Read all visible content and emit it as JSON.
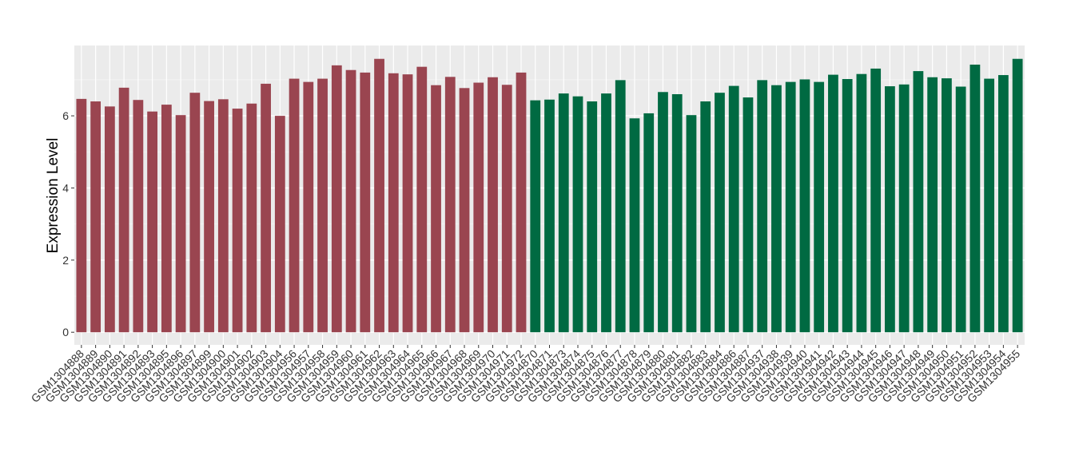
{
  "chart_data": {
    "type": "bar",
    "ylabel": "Expression Level",
    "xlabel": "",
    "ylim": [
      -0.35,
      7.95
    ],
    "yticks": [
      0,
      2,
      4,
      6
    ],
    "grid": true,
    "legend": "none",
    "colors": {
      "panel_bg": "#ebebeb",
      "grid_major": "#ffffff",
      "grid_minor": "#f4f4f4",
      "group_a": "#9a4550",
      "group_b": "#006a42"
    },
    "categories": [
      "GSM1304888",
      "GSM1304889",
      "GSM1304890",
      "GSM1304891",
      "GSM1304892",
      "GSM1304893",
      "GSM1304895",
      "GSM1304896",
      "GSM1304897",
      "GSM1304899",
      "GSM1304900",
      "GSM1304901",
      "GSM1304902",
      "GSM1304903",
      "GSM1304904",
      "GSM1304956",
      "GSM1304957",
      "GSM1304958",
      "GSM1304959",
      "GSM1304960",
      "GSM1304961",
      "GSM1304962",
      "GSM1304963",
      "GSM1304964",
      "GSM1304965",
      "GSM1304966",
      "GSM1304967",
      "GSM1304968",
      "GSM1304969",
      "GSM1304970",
      "GSM1304971",
      "GSM1304972",
      "GSM1304870",
      "GSM1304871",
      "GSM1304873",
      "GSM1304874",
      "GSM1304875",
      "GSM1304876",
      "GSM1304877",
      "GSM1304878",
      "GSM1304879",
      "GSM1304880",
      "GSM1304881",
      "GSM1304882",
      "GSM1304883",
      "GSM1304884",
      "GSM1304886",
      "GSM1304887",
      "GSM1304937",
      "GSM1304938",
      "GSM1304939",
      "GSM1304940",
      "GSM1304941",
      "GSM1304942",
      "GSM1304943",
      "GSM1304944",
      "GSM1304945",
      "GSM1304946",
      "GSM1304947",
      "GSM1304948",
      "GSM1304949",
      "GSM1304950",
      "GSM1304951",
      "GSM1304952",
      "GSM1304953",
      "GSM1304954",
      "GSM1304955"
    ],
    "values": [
      6.47,
      6.4,
      6.26,
      6.78,
      6.44,
      6.12,
      6.31,
      6.02,
      6.64,
      6.41,
      6.46,
      6.2,
      6.34,
      6.89,
      6.0,
      7.03,
      6.94,
      7.03,
      7.4,
      7.27,
      7.2,
      7.58,
      7.18,
      7.15,
      7.36,
      6.85,
      7.08,
      6.77,
      6.92,
      7.07,
      6.86,
      7.2,
      6.43,
      6.45,
      6.62,
      6.54,
      6.4,
      6.62,
      6.99,
      5.93,
      6.07,
      6.66,
      6.6,
      6.02,
      6.4,
      6.64,
      6.83,
      6.51,
      6.99,
      6.85,
      6.94,
      7.01,
      6.94,
      7.14,
      7.02,
      7.16,
      7.31,
      6.82,
      6.87,
      7.24,
      7.07,
      7.04,
      6.81,
      7.42,
      7.03,
      7.13,
      7.58
    ],
    "group_sizes": [
      32,
      35
    ]
  }
}
